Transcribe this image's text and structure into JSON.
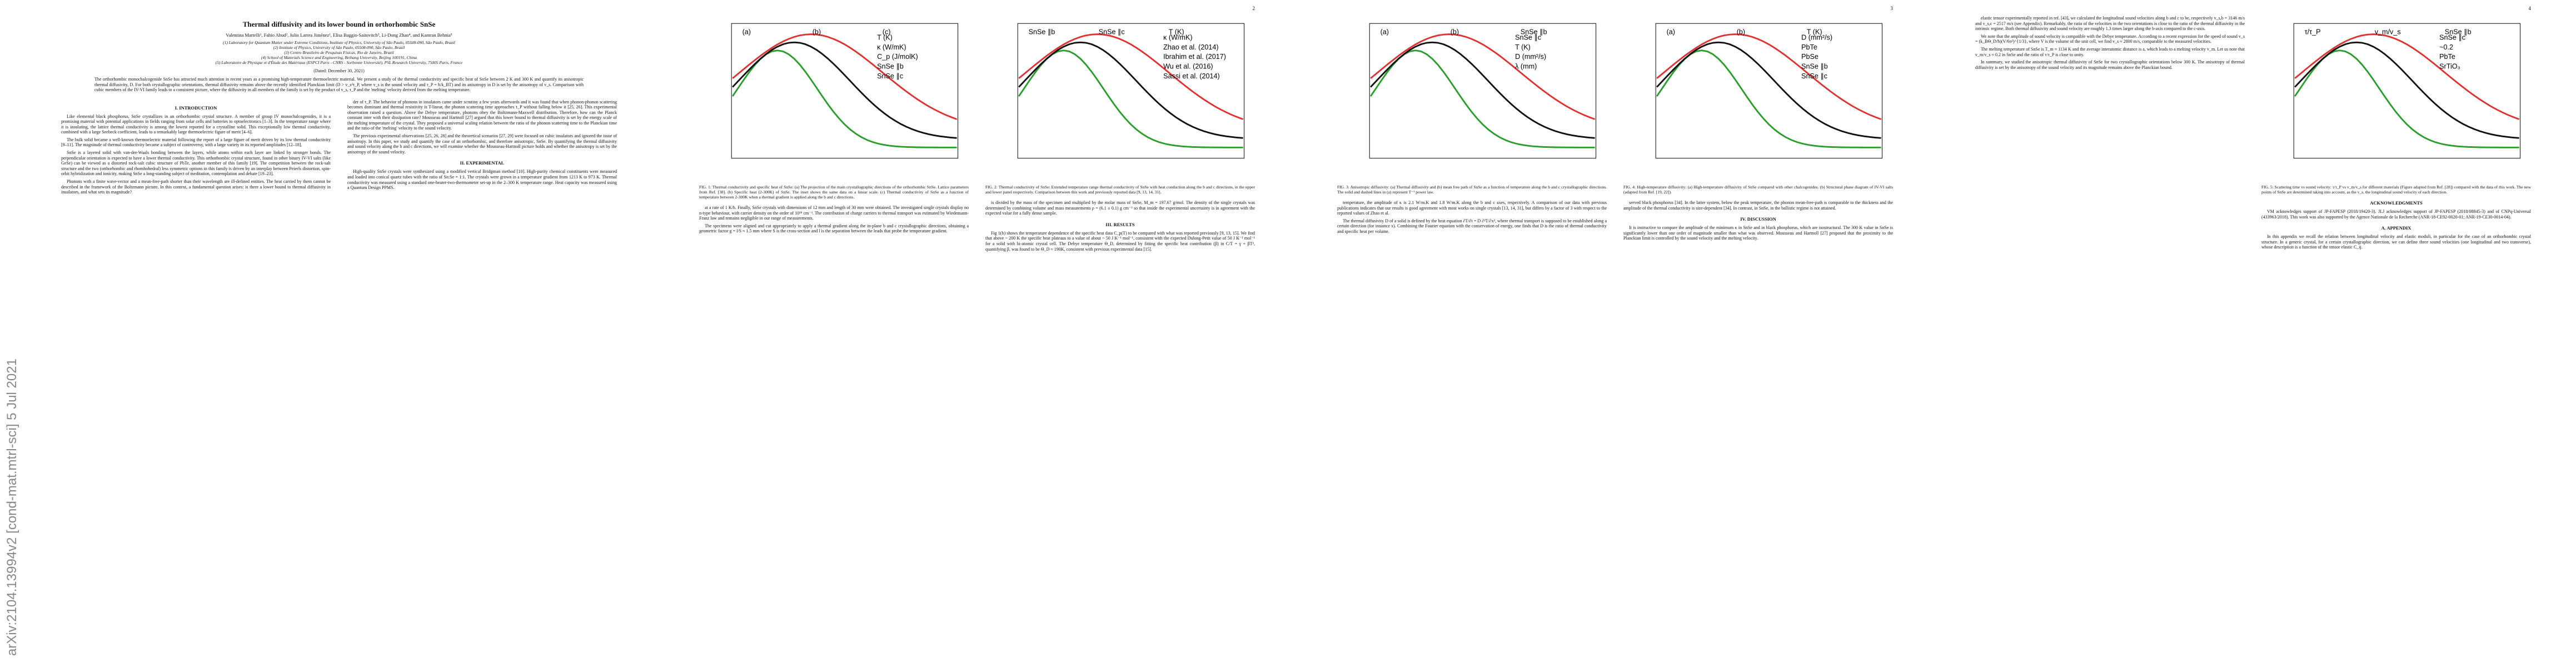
{
  "sidebar": "arXiv:2104.13994v2  [cond-mat.mtrl-sci]  5 Jul 2021",
  "pages": [
    {
      "front": {
        "title": "Thermal diffusivity and its lower bound in orthorhombic SnSe",
        "authors": "Valentina Martelli¹, Fabio Abud², Julio Larrea Jiménez¹, Elisa Baggio-Saitovitch³, Li-Dong Zhao⁴, and Kamran Behnia⁵",
        "affiliations": [
          "(1) Laboratory for Quantum Matter under Extreme Conditions, Institute of Physics, University of São Paulo, 05508-090, São Paulo, Brazil",
          "(2) Institute of Physics, University of São Paulo, 05508-090, São Paulo, Brazil",
          "(3) Centro Brasileiro de Pesquisas Físicas, Rio de Janeiro, Brazil",
          "(4) School of Materials Science and Engineering, Beihang University, Beijing 100191, China",
          "(5) Laboratoire de Physique et d'Étude des Matériaux (ESPCI Paris - CNRS - Sorbonne Université), PSL Research University, 75005 Paris, France"
        ],
        "date": "(Dated: December 30, 2021)",
        "abstract": "The orthorhombic monochalcogenide SnSe has attracted much attention in recent years as a promising high-temperature thermoelectric material. We present a study of the thermal conductivity and specific heat of SnSe between 2 K and 300 K and quantify its anisotropic thermal diffusivity, D. For both crystallographic orientations, thermal diffusivity remains above the recently identified Planckian limit (D > v_s²τ_P, where v_s is the sound velocity and τ_P = ħ/k_BT) and its anisotropy in D is set by the anisotropy of v_s. Comparison with cubic members of the IV-VI family leads to a consistent picture, where the diffusivity in all members of the family is set by the product of v_s, τ_P and the 'melting' velocity derived from the melting temperature."
      },
      "columns": [
        [
          {
            "heading": "I.  INTRODUCTION"
          },
          {
            "text": "Like elemental black phosphorus, SnSe crystallizes in an orthorhombic crystal structure. A member of group IV monochalcogenides, it is a promising material with potential applications in fields ranging from solar cells and batteries to optoelectronics [1–3]. In the temperature range where it is insulating, the lattice thermal conductivity is among the lowest reported for a crystalline solid. This exceptionally low thermal conductivity, combined with a large Seebeck coefficient, leads to a remarkably large thermoelectric figure of merit [4–6]."
          },
          {
            "text": "The bulk solid became a well-known thermoelectric material following the report of a large figure of merit driven by its low thermal conductivity [9–11]. The magnitude of thermal conductivity became a subject of controversy, with a large variety in its reported amplitudes [12–18]."
          },
          {
            "text": "SnSe is a layered solid with van-der-Waals bonding between the layers, while atoms within each layer are linked by stronger bonds. The perpendicular orientation is expected to have a lower thermal conductivity. This orthorhombic crystal structure, found in other binary IV-VI salts (like GeSe) can be viewed as a distorted rock-salt cubic structure of PbTe, another member of this family [19]. The competition between the rock-salt structure and the two (orthorhombic and rhombohedral) less symmetric options in this family is driven by an interplay between Peierls distortion, spin-orbit hybridization and ionicity, making SnSe a long-standing subject of meditation, contemplation and debate [19–23]."
          },
          {
            "text": "Phonons with a finite wave-vector and a mean-free-path shorter than their wavelength are ill-defined entities. The heat carried by them cannot be described in the framework of the Boltzmann picture. In this context, a fundamental question arises: is there a lower bound to thermal diffusivity in insulators, and what sets its magnitude?"
          }
        ],
        [
          {
            "text": "der of τ_P. The behavior of phonons in insulators came under scrutiny a few years afterwards and it was found that when phonon-phonon scattering becomes dominant and thermal resistivity is T-linear, the phonon scattering time approaches τ_P without falling below it [25, 26]. This experimental observation raised a question. Above the Debye temperature, phonons obey the Boltzmann-Maxwell distribution. Therefore, how can the Planck constant inter with their dissipation rate? Mousseau and Hartnoll [27] argued that this lower bound to thermal diffusivity is set by the energy scale of the melting temperature of the crystal. They proposed a universal scaling relation between the ratio of the phonon scattering time to the Planckian time and the ratio of the 'melting' velocity to the sound velocity."
          },
          {
            "text": "The previous experimental observations [25, 26, 28] and the theoretical scenarios [27, 29] were focused on cubic insulators and ignored the issue of anisotropy. In this paper, we study and quantify the case of an orthorhombic, and therefore anisotropic, SnSe. By quantifying the thermal diffusivity and sound velocity along the b and c directions, we will examine whether the Mousseau-Hartnoll picture holds and whether the anisotropy is set by the anisotropy of the sound velocity."
          },
          {
            "heading": "II.  EXPERIMENTAL"
          },
          {
            "text": "High-quality SnSe crystals were synthesized using a modified vertical Bridgman method [10]. High-purity chemical constituents were measured and loaded into conical quartz tubes with the ratio of Sn:Se = 1:1. The crystals were grown in a temperature gradient from 1213 K to 973 K. Thermal conductivity was measured using a standard one-heater-two-thermometer set-up in the 2–300 K temperature range. Heat capacity was measured using a Quantum Design PPMS."
          }
        ]
      ]
    },
    {
      "number": "2",
      "columns": [
        [
          {
            "figure": [
              "(a)",
              "(b)",
              "(c)",
              "T (K)",
              "κ (W/mK)",
              "C_p (J/molK)",
              "SnSe ∥b",
              "SnSe ∥c"
            ]
          },
          {
            "caption": "FIG. 1: Thermal conductivity and specific heat of SnSe: (a) The projection of the main crystallographic directions of the orthorhombic SnSe. Lattice parameters from Ref. [38]. (b) Specific heat (2-300K) of SnSe. The inset shows the same data on a linear scale. (c) Thermal conductivity of SnSe as a function of temperature between 2-300K when a thermal gradient is applied along the b and c directions."
          },
          {
            "text": "at a rate of 1 K/h. Finally, SnSe crystals with dimensions of 12 mm and length of 30 mm were obtained. The investigated single crystals display no n-type behaviour, with carrier density on the order of 10¹⁸ cm⁻³. The contribution of charge carriers to thermal transport was estimated by Wiedemann-Franz law and remains negligible in our range of measurements."
          },
          {
            "text": "The specimens were aligned and cut appropriately to apply a thermal gradient along the in-plane b and c crystallographic directions, obtaining a geometric factor g = l/S ≈ 1.5 mm where S is the cross-section and l is the separation between the leads that probe the temperature gradient."
          }
        ],
        [
          {
            "figure": [
              "SnSe ∥b",
              "SnSe ∥c",
              "T (K)",
              "κ (W/mK)",
              "Zhao et al. (2014)",
              "Ibrahim et al. (2017)",
              "Wu et al. (2016)",
              "Sassi et al. (2014)"
            ]
          },
          {
            "caption": "FIG. 2: Thermal conductivity of SnSe: Extended temperature range thermal conductivity of SnSe with heat conduction along the b and c directions, in the upper and lower panel respectively. Comparison between this work and previously reported data [9, 13, 14, 31]."
          },
          {
            "text": "is divided by the mass of the specimen and multiplied by the molar mass of SnSe, M_m = 197.67 g/mol. The density of the single crystals was determined by combining volume and mass measurements ρ = (6.1 ± 0.1) g cm⁻³ so that inside the experimental uncertainty is in agreement with the expected value for a fully dense sample."
          },
          {
            "heading": "III.  RESULTS"
          },
          {
            "text": "Fig 1(b) shows the temperature dependence of the specific heat data C_p(T) to be compared with what was reported previously [9, 13, 15]. We find that above ~ 200 K the specific heat plateaus to a value of about ~ 50 J K⁻¹ mol⁻¹, consistent with the expected Dulong-Petit value of 50 J K⁻¹ mol⁻¹ for a solid with bi-atomic crystal cell. The Debye temperature Θ_D, determined by fitting the specific heat contribution (β) in C/T = γ + βT², quantifying β, was found to be Θ_D ≈ 190K, consistent with previous experimental data [15]."
          }
        ]
      ]
    },
    {
      "number": "3",
      "columns": [
        [
          {
            "figure": [
              "(a)",
              "(b)",
              "SnSe ∥b",
              "SnSe ∥c",
              "T (K)",
              "D (mm²/s)",
              "λ (mm)"
            ]
          },
          {
            "caption": "FIG. 3: Anisotropic diffusivity: (a) Thermal diffusivity and (b) mean free path of SnSe as a function of temperature along the b and c crystallographic directions. The solid and dashed lines in (a) represent T⁻¹ power law."
          },
          {
            "text": "temperature, the amplitude of κ is 2.1 W/m.K and 1.8 W/m.K along the b and c axes, respectively. A comparison of our data with previous publications indicates that our results is good agreement with most works on single crystals [13, 14, 31], but differs by a factor of 3 with respect to the reported values of Zhao et al."
          },
          {
            "text": "The thermal diffusivity D of a solid is defined by the heat equation ∂T/∂t = D ∂²T/∂x², where thermal transport is supposed to be established along a certain direction (for instance x). Combining the Fourier equation with the conservation of energy, one finds that D is the ratio of thermal conductivity and specific heat per volume."
          }
        ],
        [
          {
            "figure": [
              "(a)",
              "(b)",
              "T (K)",
              "D (mm²/s)",
              "PbTe",
              "PbSe",
              "SnSe ∥b",
              "SnSe ∥c"
            ]
          },
          {
            "caption": "FIG. 4: High-temperature diffusivity: (a) High-temperature diffusivity of SnSe compared with other chalcogenides. (b) Structural phase diagram of IV-VI salts (adapted from Ref. [19, 22])."
          },
          {
            "text": "served black phosphorus [34]. In the latter system, below the peak temperature, the phonon mean-free-path is comparable to the thickness and the amplitude of the thermal conductivity is size-dependent [34]. In contrast, in SnSe, in the ballistic regime is not attained."
          },
          {
            "heading": "IV.  DISCUSSION"
          },
          {
            "text": "It is instructive to compare the amplitude of the minimum κ in SnSe and in black phosphorus, which are isostructural. The 300 K value in SnSe is significantly lower than one order of magnitude smaller than what was observed. Mousseau and Hartnoll [27] proposed that the proximity to the Planckian limit is controlled by the sound velocity and the melting velocity."
          }
        ]
      ]
    },
    {
      "number": "4",
      "columns": [
        [
          {
            "text": "elastic tensor experimentally reported in ref. [43], we calculated the longitudinal sound velocities along b and c to be, respectively v_s,b = 3146 m/s and v_s,c = 2517 m/s (see Appendix). Remarkably, the ratio of the velocities in the two orientations is close to the ratio of the thermal diffusivity in the intrinsic regime. Both thermal diffusivity and sound velocity are roughly 1.3 times larger along the b-axis compared to the c-axis."
          },
          {
            "text": "We note that the amplitude of sound velocity is compatible with the Debye temperature. According to a recent expression for the speed of sound v_s = (k_BΘ_D/ħ)(V/6π²)^{1/3}, where V is the volume of the unit cell, we find v_s ≈ 2800 m/s, comparable to the measured velocities."
          },
          {
            "text": "The melting temperature of SnSe is T_m ≈ 1134 K and the average interatomic distance is a, which leads to a melting velocity v_m. Let us note that v_m/v_s ≈ 0.2 in SnSe and the ratio of τ/τ_P is close to unity."
          },
          {
            "text": "In summary, we studied the anisotropic thermal diffusivity of SnSe for two crystallographic orientations below 300 K. The anisotropy of thermal diffusivity is set by the anisotropy of the sound velocity and its magnitude remains above the Planckian bound."
          }
        ],
        [
          {
            "figure": [
              "τ/τ_P",
              "v_m/v_s",
              "SnSe ∥b",
              "SnSe ∥c",
              "~0.2",
              "PbTe",
              "SrTiO₃"
            ]
          },
          {
            "caption": "FIG. 5: Scattering time vs sound velocity: τ/τ_P vs v_m/v_s for different materials (Figure adapted from Ref. [28]) compared with the data of this work. The new points of SnSe are determined taking into account, as the v_s, the longitudinal sound velocity of each direction."
          },
          {
            "heading": "ACKNOWLEDGMENTS"
          },
          {
            "text": "VM acknowledges support of JP-FAPESP (2018/19420-3). JLJ acknowledges support of JP-FAPESP (2018/08845-3) and of CNPq-Universal (433963/2018). This work was also supported by the Agence Nationale de la Recherche (ANR-18-CE92-0020-01; ANR-19-CE30-0014-04)."
          },
          {
            "heading": "A.  APPENDIX"
          },
          {
            "text": "In this appendix we recall the relation between longitudinal velocity and elastic moduli, in particular for the case of an orthorhombic crystal structure. In a generic crystal, for a certain crystallographic direction, we can define three sound velocities (one longitudinal and two transverse), whose description is a function of the tensor elastic C_ij."
          }
        ]
      ]
    }
  ]
}
